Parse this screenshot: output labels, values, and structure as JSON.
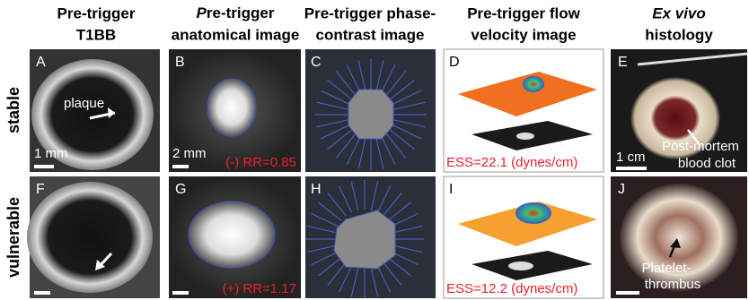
{
  "column_headers": [
    {
      "line1": "Pre-trigger",
      "line2": "T1BB"
    },
    {
      "line1": "Pre-trigger",
      "line2": "anatomical image"
    },
    {
      "line1": "Pre-trigger phase-",
      "line2": "contrast image"
    },
    {
      "line1": "Pre-trigger flow",
      "line2": "velocity image"
    },
    {
      "line1": "Ex vivo",
      "line2": "histology"
    }
  ],
  "rows": [
    {
      "label": "stable",
      "panels": [
        {
          "letter": "A",
          "annotation": "plaque",
          "scale": "1 mm"
        },
        {
          "letter": "B",
          "scale": "2 mm",
          "measure": "(-) RR=0.85"
        },
        {
          "letter": "C"
        },
        {
          "letter": "D",
          "measure": "ESS=22.1 (dynes/cm)"
        },
        {
          "letter": "E",
          "annotation_line1": "Post-mortem",
          "annotation_line2": "blood clot",
          "scale": "1 cm"
        }
      ]
    },
    {
      "label": "vulnerable",
      "panels": [
        {
          "letter": "F"
        },
        {
          "letter": "G",
          "measure": "(+) RR=1.17"
        },
        {
          "letter": "H"
        },
        {
          "letter": "I",
          "measure": "ESS=12.2 (dynes/cm)"
        },
        {
          "letter": "J",
          "annotation_line1": "Platelet-",
          "annotation_line2": "thrombus"
        }
      ]
    }
  ]
}
